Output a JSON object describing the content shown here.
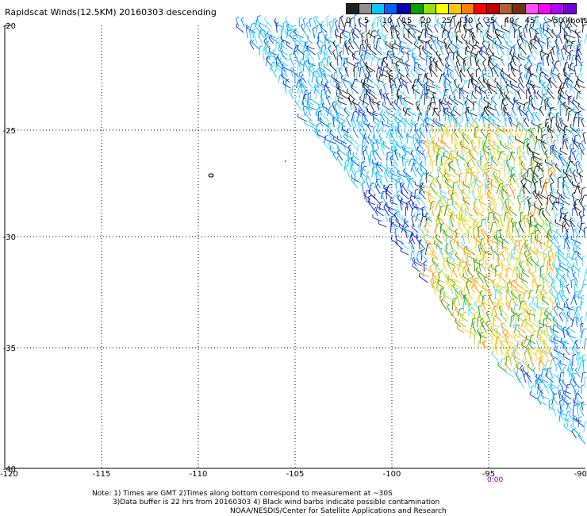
{
  "title": "Rapidscat Winds(12.5KM) 20160303 descending",
  "legend": {
    "labels": [
      "0",
      "5",
      "10",
      "15",
      "20",
      "25",
      "30",
      "35",
      "40",
      "45",
      ">50 knots"
    ],
    "colors": [
      "#202020",
      "#909090",
      "#00c8ff",
      "#0060ff",
      "#0000b0",
      "#00a000",
      "#98e000",
      "#ffff00",
      "#ffc800",
      "#ff8000",
      "#ff0000",
      "#c00000",
      "#b06030",
      "#703010",
      "#ff50ff",
      "#ff00ff",
      "#b000ff",
      "#7000d0"
    ]
  },
  "axes": {
    "lat_labels": [
      "-20",
      "-25",
      "-30",
      "-35",
      "-40"
    ],
    "lon_labels": [
      "-120",
      "-115",
      "-110",
      "-105",
      "-100",
      "-95",
      "-90"
    ]
  },
  "time_label": "0:00",
  "notes": {
    "line1": "Note: 1) Times are GMT 2)Times along bottom correspond to measurement at ~30S",
    "line2": "3)Data buffer is 22 hrs from 20160303 4) Black wind barbs indicate possible contamination",
    "line3": "NOAA/NESDIS/Center for Satellite Applications and Research"
  }
}
